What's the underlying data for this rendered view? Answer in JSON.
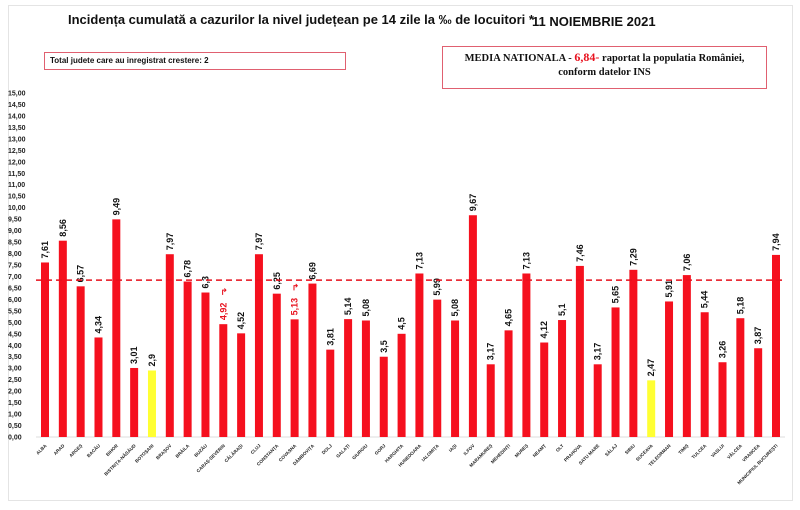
{
  "chart_data": {
    "type": "bar",
    "title": "Incidența cumulată a cazurilor la nivel județean pe 14 zile la ‰ de locuitori *",
    "date": "11 NOIEMBRIE 2021",
    "info_box": "Total judete care au inregistrat crestere: 2",
    "national_box": {
      "prefix": "MEDIA NATIONALA - ",
      "value_text": "6,84-",
      "suffix": " raportat la populatia României,",
      "line2": "conform datelor INS"
    },
    "national_average": 6.84,
    "ylim": [
      0,
      15
    ],
    "ytick_step": 0.5,
    "xlabel": "",
    "ylabel": "",
    "grid": false,
    "categories": [
      "ALBA",
      "ARAD",
      "ARGEȘ",
      "BACĂU",
      "BIHOR",
      "BISTRIȚA-NĂSĂUD",
      "BOTOȘANI",
      "BRAȘOV",
      "BRĂILA",
      "BUZĂU",
      "CARAȘ-SEVERIN",
      "CĂLĂRAȘI",
      "CLUJ",
      "CONSTANȚA",
      "COVASNA",
      "DÂMBOVIȚA",
      "DOLJ",
      "GALAȚI",
      "GIURGIU",
      "GORJ",
      "HARGHITA",
      "HUNEDOARA",
      "IALOMIȚA",
      "IAȘI",
      "ILFOV",
      "MARAMUREȘ",
      "MEHEDINȚI",
      "MUREȘ",
      "NEAMȚ",
      "OLT",
      "PRAHOVA",
      "SATU MARE",
      "SĂLAJ",
      "SIBIU",
      "SUCEAVA",
      "TELEORMAN",
      "TIMIȘ",
      "TULCEA",
      "VASLUI",
      "VÂLCEA",
      "VRANCEA",
      "MUNICIPIUL BUCUREȘTI"
    ],
    "values": [
      7.61,
      8.56,
      6.57,
      4.34,
      9.49,
      3.01,
      2.9,
      7.97,
      6.78,
      6.3,
      4.92,
      4.52,
      7.97,
      6.25,
      5.13,
      6.69,
      3.81,
      5.14,
      5.08,
      3.5,
      4.5,
      7.13,
      5.99,
      5.08,
      9.67,
      3.17,
      4.65,
      7.13,
      4.12,
      5.1,
      7.46,
      3.17,
      5.65,
      7.29,
      2.47,
      5.91,
      7.06,
      5.44,
      3.26,
      5.18,
      3.87,
      7.94
    ],
    "value_labels": [
      "7,61",
      "8,56",
      "6,57",
      "4,34",
      "9,49",
      "3,01",
      "2,9",
      "7,97",
      "6,78",
      "6,3",
      "4,92",
      "4,52",
      "7,97",
      "6,25",
      "5,13",
      "6,69",
      "3,81",
      "5,14",
      "5,08",
      "3,5",
      "4,5",
      "7,13",
      "5,99",
      "5,08",
      "9,67",
      "3,17",
      "4,65",
      "7,13",
      "4,12",
      "5,1",
      "7,46",
      "3,17",
      "5,65",
      "7,29",
      "2,47",
      "5,91",
      "7,06",
      "5,44",
      "3,26",
      "5,18",
      "3,87",
      "7,94"
    ],
    "highlight_yellow": [
      "BOTOȘANI",
      "SUCEAVA"
    ],
    "increase_marked": [
      "CARAȘ-SEVERIN",
      "COVASNA"
    ],
    "colors": {
      "bar": "#f5101e",
      "highlight": "#ffff33",
      "average_line": "#e8101d",
      "increase_label": "#e8101d"
    }
  }
}
